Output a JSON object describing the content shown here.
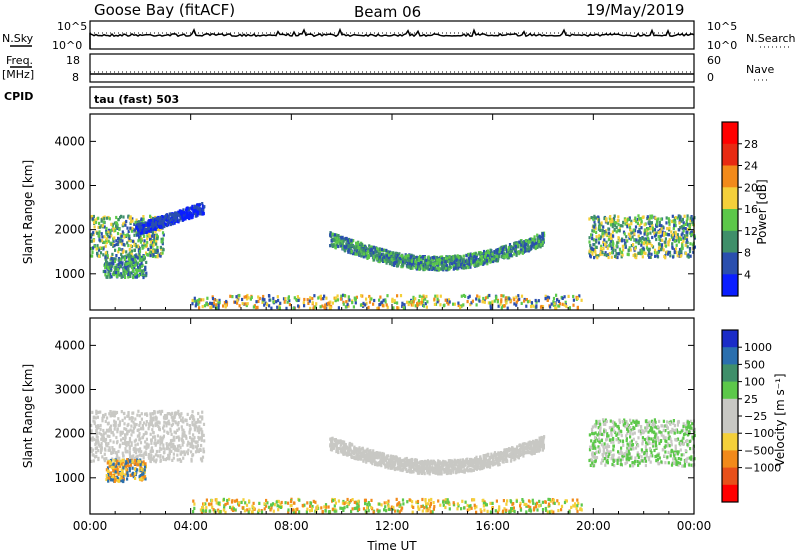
{
  "header": {
    "station": "Goose Bay (fitACF)",
    "beam": "Beam 06",
    "date": "19/May/2019"
  },
  "status_panel": {
    "nsky_label": "N.Sky",
    "nsearch_label": "N.Search",
    "noise_ticks": [
      "10^5",
      "10^0"
    ],
    "freq_label_1": "Freq.",
    "freq_label_2": "[MHz]",
    "freq_ticks": [
      "18",
      "8"
    ],
    "nave_label": "Nave",
    "nave_ticks": [
      "60",
      "0"
    ],
    "cpid_label": "CPID",
    "cpid_text": "tau (fast) 503"
  },
  "chart_data": [
    {
      "type": "heatmap",
      "title": "",
      "xlabel": "",
      "ylabel": "Slant Range [km]",
      "x_ticks": [
        "00:00",
        "04:00",
        "08:00",
        "12:00",
        "16:00",
        "20:00",
        "00:00"
      ],
      "y_ticks": [
        1000,
        2000,
        3000,
        4000
      ],
      "xlim_hours": [
        0,
        24
      ],
      "ylim_km": [
        180,
        4620
      ],
      "colorbar": {
        "label": "Power [dB]",
        "ticks": [
          "4",
          "8",
          "12",
          "16",
          "20",
          "24",
          "28"
        ],
        "colors": [
          "#0a1eff",
          "#2a4fae",
          "#3f8f6a",
          "#5cc84a",
          "#f4d03a",
          "#f28a1a",
          "#e82a12",
          "#ff0000"
        ]
      },
      "echo_regions": [
        {
          "region": "early-band",
          "hours": [
            0.0,
            2.9
          ],
          "range_km": [
            1400,
            2350
          ],
          "level": "mixed",
          "colors": [
            "#2a4fae",
            "#3f8f6a",
            "#5cc84a",
            "#f4d03a"
          ]
        },
        {
          "region": "early-lower",
          "hours": [
            0.5,
            2.2
          ],
          "range_km": [
            950,
            1450
          ],
          "level": "mixed",
          "colors": [
            "#2a4fae",
            "#3f8f6a",
            "#5cc84a"
          ]
        },
        {
          "region": "rising-arc",
          "hours": [
            1.8,
            4.5
          ],
          "range_km": [
            1900,
            2650
          ],
          "level": "low",
          "colors": [
            "#2a4fae",
            "#0a1eff"
          ]
        },
        {
          "region": "midday-arc",
          "hours": [
            9.5,
            18.0
          ],
          "range_km": [
            1150,
            2050
          ],
          "level": "low",
          "colors": [
            "#2a4fae",
            "#3f8f6a",
            "#5cc84a"
          ]
        },
        {
          "region": "late-band",
          "hours": [
            19.8,
            24.0
          ],
          "range_km": [
            1400,
            2350
          ],
          "level": "mixed",
          "colors": [
            "#2a4fae",
            "#3f8f6a",
            "#5cc84a",
            "#f4d03a"
          ]
        },
        {
          "region": "near-range",
          "hours": [
            4.0,
            19.5
          ],
          "range_km": [
            250,
            550
          ],
          "level": "mixed",
          "colors": [
            "#2a4fae",
            "#5cc84a",
            "#f4d03a",
            "#f28a1a"
          ]
        }
      ]
    },
    {
      "type": "heatmap",
      "title": "",
      "xlabel": "Time UT",
      "ylabel": "Slant Range [km]",
      "x_ticks": [
        "00:00",
        "04:00",
        "08:00",
        "12:00",
        "16:00",
        "20:00",
        "00:00"
      ],
      "y_ticks": [
        1000,
        2000,
        3000,
        4000
      ],
      "xlim_hours": [
        0,
        24
      ],
      "ylim_km": [
        180,
        4620
      ],
      "colorbar": {
        "label": "Velocity [m s⁻¹]",
        "ticks": [
          "1000",
          "500",
          "100",
          "25",
          "−25",
          "−100",
          "−500",
          "−1000"
        ],
        "colors": [
          "#1a2cc8",
          "#2a6fae",
          "#3f8f6a",
          "#5cc84a",
          "#c8c8c4",
          "#c8c8c4",
          "#f4d03a",
          "#f28a1a",
          "#e8501a",
          "#ff0000"
        ]
      },
      "echo_regions": [
        {
          "region": "early-band",
          "hours": [
            0.0,
            4.5
          ],
          "range_km": [
            1400,
            2550
          ],
          "level": "near-zero",
          "colors": [
            "#c8c8c4"
          ]
        },
        {
          "region": "early-lower",
          "hours": [
            0.6,
            2.2
          ],
          "range_km": [
            950,
            1450
          ],
          "level": "negative",
          "colors": [
            "#f28a1a",
            "#f4d03a",
            "#2a6fae"
          ]
        },
        {
          "region": "midday-arc",
          "hours": [
            9.5,
            18.0
          ],
          "range_km": [
            1150,
            2050
          ],
          "level": "near-zero",
          "colors": [
            "#c8c8c4"
          ]
        },
        {
          "region": "late-band",
          "hours": [
            19.8,
            24.0
          ],
          "range_km": [
            1300,
            2350
          ],
          "level": "near-zero",
          "colors": [
            "#c8c8c4",
            "#5cc84a"
          ]
        },
        {
          "region": "near-range",
          "hours": [
            4.0,
            19.5
          ],
          "range_km": [
            250,
            550
          ],
          "level": "mixed",
          "colors": [
            "#5cc84a",
            "#f4d03a",
            "#f28a1a"
          ]
        }
      ]
    }
  ]
}
